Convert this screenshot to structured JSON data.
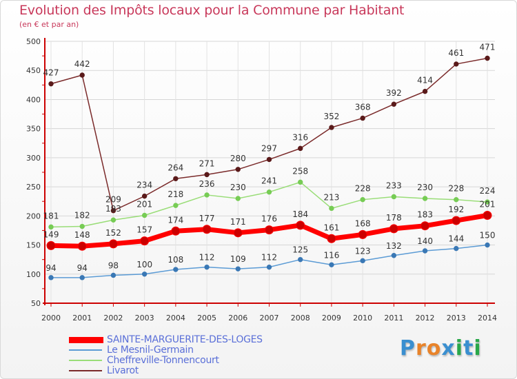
{
  "title": "Evolution des Impôts locaux pour la Commune par Habitant",
  "subtitle": "(en € et par an)",
  "brand": "Proxiti",
  "chart_data": {
    "type": "line",
    "x": [
      "2000",
      "2001",
      "2002",
      "2003",
      "2004",
      "2005",
      "2006",
      "2007",
      "2008",
      "2009",
      "2010",
      "2011",
      "2012",
      "2013",
      "2014"
    ],
    "ylim": [
      50,
      500
    ],
    "yticks": [
      "50",
      "100",
      "150",
      "200",
      "250",
      "300",
      "350",
      "400",
      "450",
      "500"
    ],
    "grid": true,
    "legend_position": "bottom-left",
    "series": [
      {
        "name": "SAINTE-MARGUERITE-DES-LOGES",
        "color": "#ff0000",
        "marker": "#cc0000",
        "width": 7,
        "label_offset": -12,
        "values": [
          149,
          148,
          152,
          157,
          174,
          177,
          171,
          176,
          184,
          161,
          168,
          178,
          183,
          192,
          201
        ],
        "labels": [
          "149",
          "148",
          "152",
          "157",
          "174",
          "177",
          "171",
          "176",
          "184",
          "161",
          "168",
          "178",
          "183",
          "192",
          "201"
        ]
      },
      {
        "name": "Le Mesnil-Germain",
        "color": "#5b9bd5",
        "marker": "#3a78b5",
        "width": 1.5,
        "label_offset": -10,
        "values": [
          94,
          94,
          98,
          100,
          108,
          112,
          109,
          112,
          125,
          116,
          123,
          132,
          140,
          144,
          150
        ],
        "labels": [
          "94",
          "94",
          "98",
          "100",
          "108",
          "112",
          "109",
          "112",
          "125",
          "116",
          "123",
          "132",
          "140",
          "144",
          "150"
        ]
      },
      {
        "name": "Cheffreville-Tonnencourt",
        "color": "#99dd77",
        "marker": "#77cc55",
        "width": 1.5,
        "label_offset": -12,
        "values": [
          181,
          182,
          193,
          201,
          218,
          236,
          230,
          241,
          258,
          213,
          228,
          233,
          230,
          228,
          224
        ],
        "labels": [
          "181",
          "182",
          "193",
          "201",
          "218",
          "236",
          "230",
          "241",
          "258",
          "213",
          "228",
          "233",
          "230",
          "228",
          "224"
        ]
      },
      {
        "name": "Livarot",
        "color": "#7a2a2a",
        "marker": "#5a1a1a",
        "width": 1.5,
        "label_offset": -12,
        "values": [
          427,
          442,
          209,
          234,
          264,
          271,
          280,
          297,
          316,
          352,
          368,
          392,
          414,
          461,
          471
        ],
        "labels": [
          "427",
          "442",
          "209",
          "234",
          "264",
          "271",
          "280",
          "297",
          "316",
          "352",
          "368",
          "392",
          "414",
          "461",
          "471"
        ]
      }
    ]
  }
}
